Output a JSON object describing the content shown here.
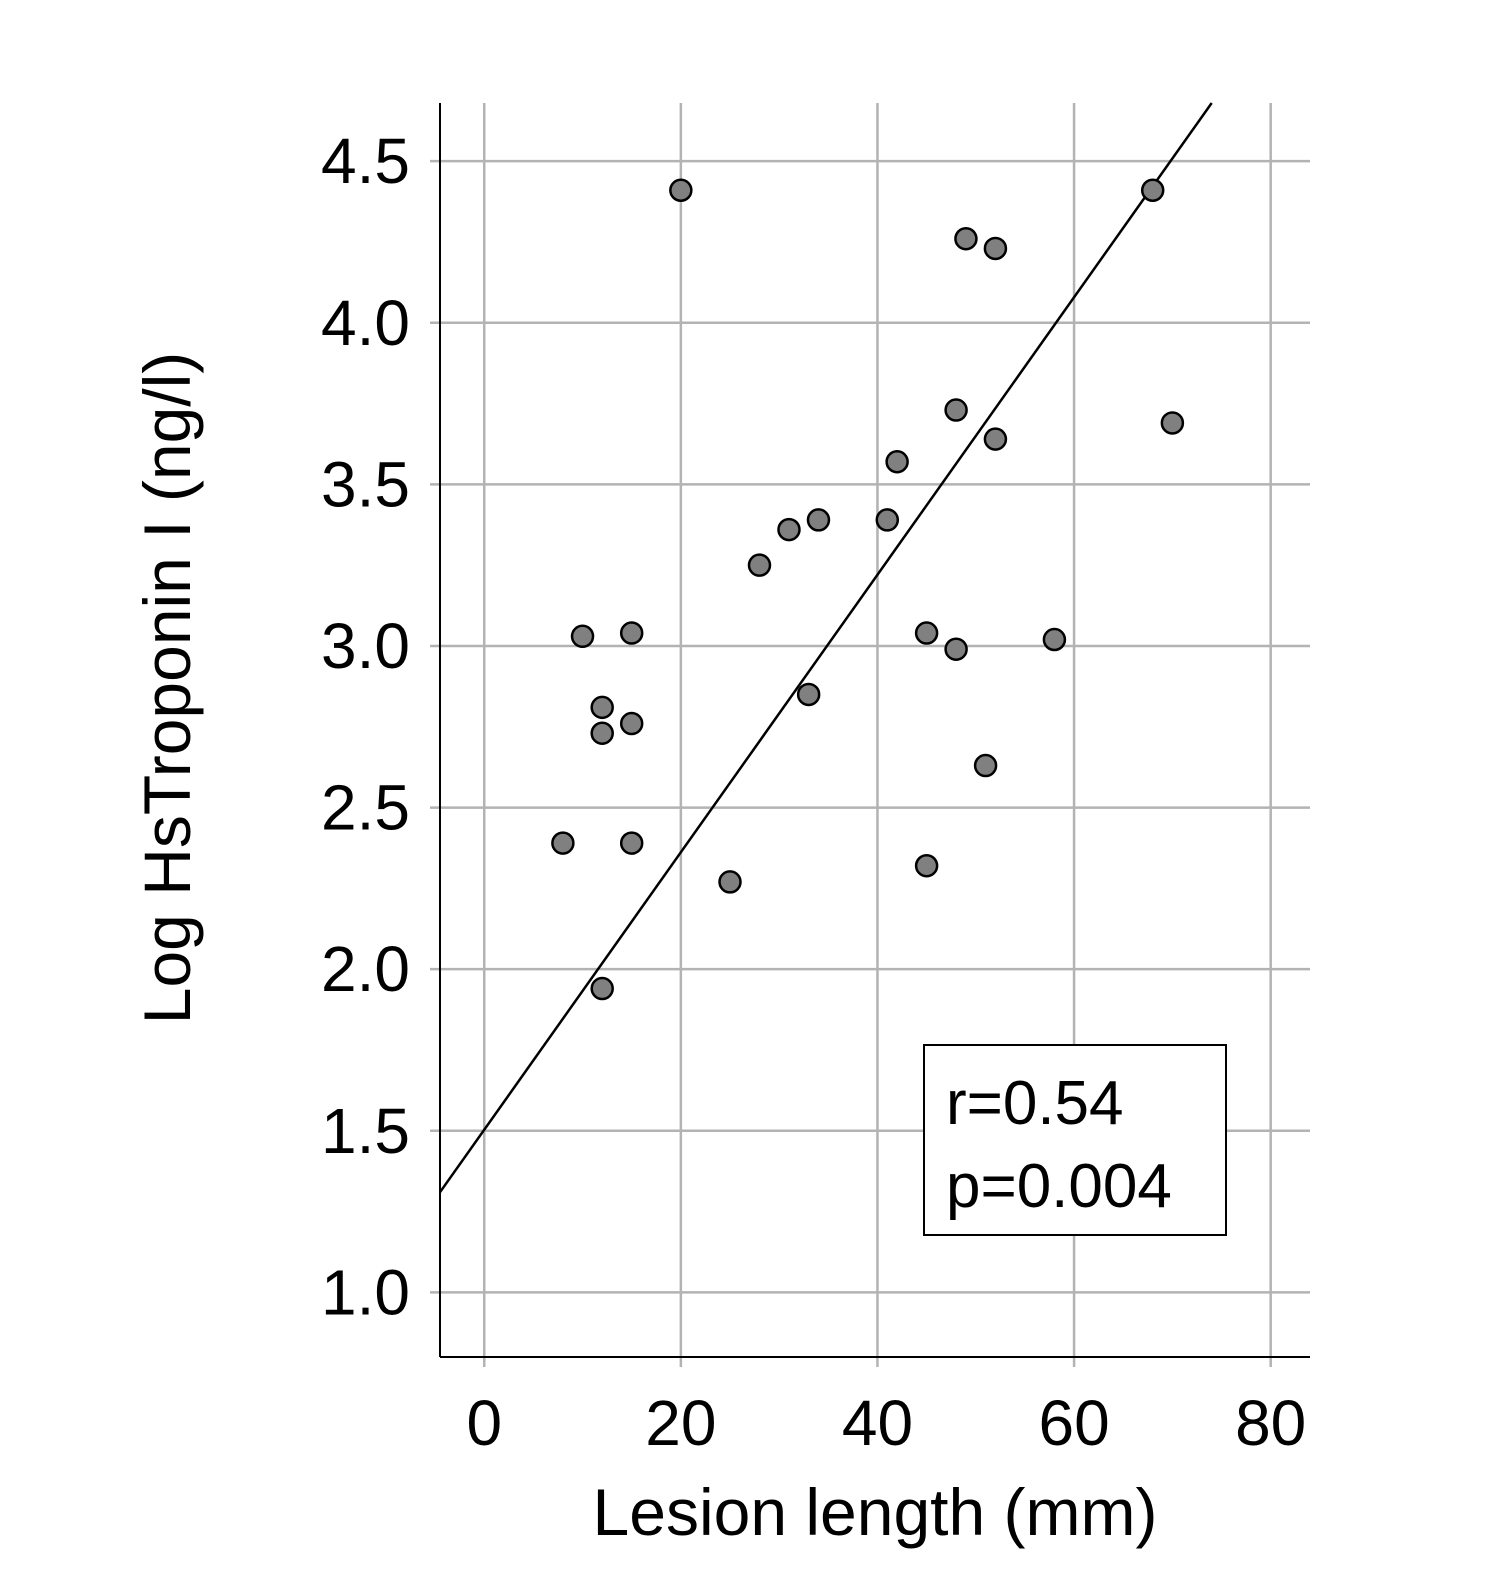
{
  "chart_data": {
    "type": "scatter",
    "xlabel": "Lesion length (mm)",
    "ylabel": "Log HsTroponin I (ng/l)",
    "xlim": [
      -4.5,
      84
    ],
    "ylim": [
      0.8,
      4.68
    ],
    "x_ticks": [
      0,
      20,
      40,
      60,
      80
    ],
    "x_tick_labels": [
      "0",
      "20",
      "40",
      "60",
      "80"
    ],
    "y_ticks": [
      1.0,
      1.5,
      2.0,
      2.5,
      3.0,
      3.5,
      4.0,
      4.5
    ],
    "y_tick_labels": [
      "1.0",
      "1.5",
      "2.0",
      "2.5",
      "3.0",
      "3.5",
      "4.0",
      "4.5"
    ],
    "grid": true,
    "point_color": "#808080",
    "points": [
      {
        "x": 20,
        "y": 4.41
      },
      {
        "x": 68,
        "y": 4.41
      },
      {
        "x": 49,
        "y": 4.26
      },
      {
        "x": 52,
        "y": 4.23
      },
      {
        "x": 48,
        "y": 3.73
      },
      {
        "x": 70,
        "y": 3.69
      },
      {
        "x": 52,
        "y": 3.64
      },
      {
        "x": 42,
        "y": 3.57
      },
      {
        "x": 34,
        "y": 3.39
      },
      {
        "x": 41,
        "y": 3.39
      },
      {
        "x": 31,
        "y": 3.36
      },
      {
        "x": 28,
        "y": 3.25
      },
      {
        "x": 15,
        "y": 3.04
      },
      {
        "x": 45,
        "y": 3.04
      },
      {
        "x": 10,
        "y": 3.03
      },
      {
        "x": 58,
        "y": 3.02
      },
      {
        "x": 48,
        "y": 2.99
      },
      {
        "x": 33,
        "y": 2.85
      },
      {
        "x": 12,
        "y": 2.81
      },
      {
        "x": 15,
        "y": 2.76
      },
      {
        "x": 12,
        "y": 2.73
      },
      {
        "x": 51,
        "y": 2.63
      },
      {
        "x": 8,
        "y": 2.39
      },
      {
        "x": 15,
        "y": 2.39
      },
      {
        "x": 45,
        "y": 2.32
      },
      {
        "x": 25,
        "y": 2.27
      },
      {
        "x": 12,
        "y": 1.94
      }
    ],
    "fit_line": {
      "color": "#000000",
      "from": {
        "x": -4.5,
        "y": 1.31
      },
      "to": {
        "x": 74,
        "y": 4.68
      }
    },
    "annotation": {
      "position": "bottom-right",
      "lines": [
        "r=0.54",
        "p=0.004"
      ]
    }
  }
}
